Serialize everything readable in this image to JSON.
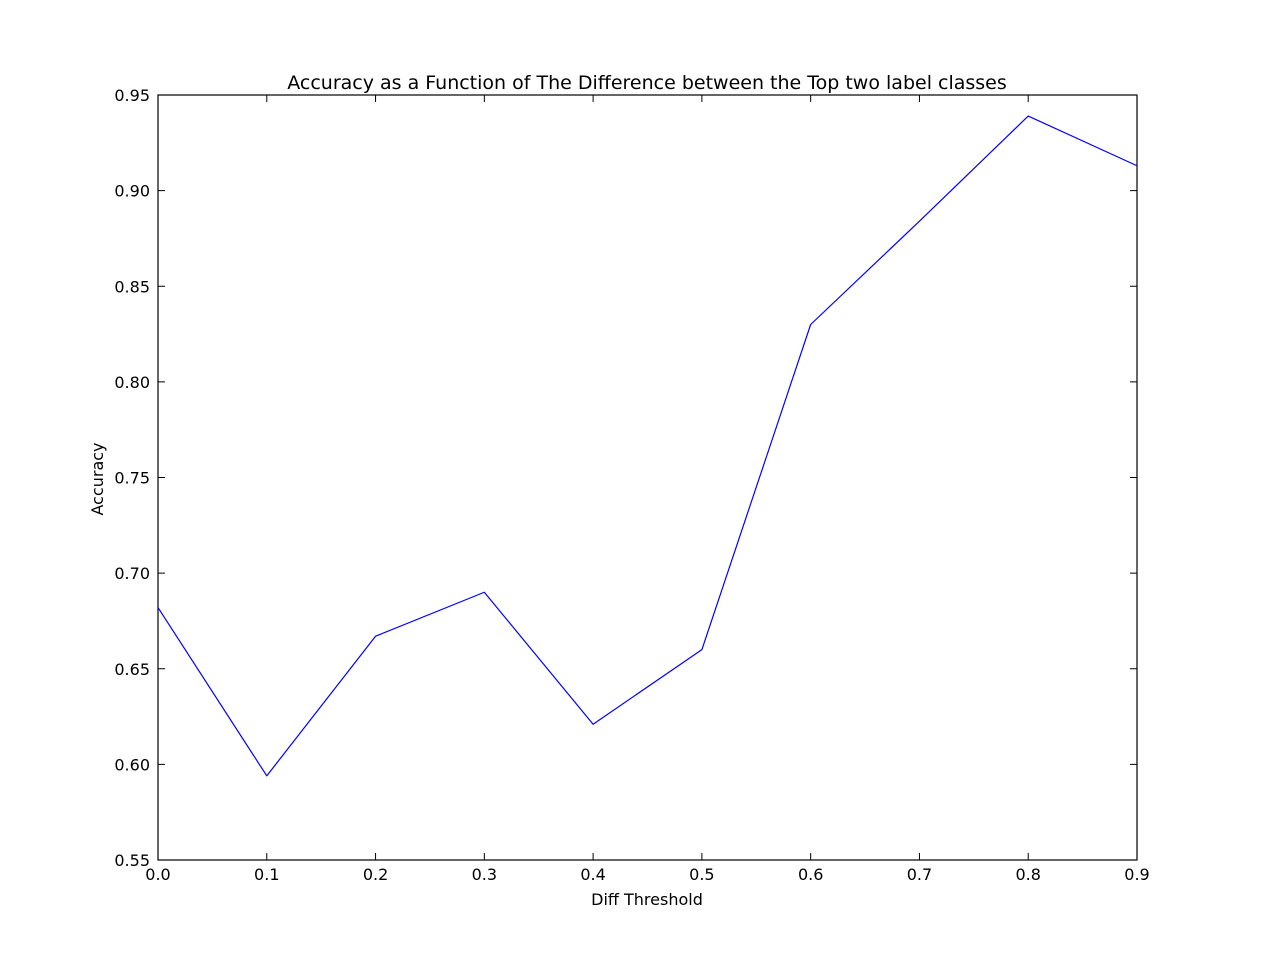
{
  "chart_data": {
    "type": "line",
    "title": "Accuracy as a Function of The Difference between the Top two label classes",
    "xlabel": "Diff Threshold",
    "ylabel": "Accuracy",
    "xlim": [
      0.0,
      0.9
    ],
    "ylim": [
      0.55,
      0.95
    ],
    "xticks": [
      "0.0",
      "0.1",
      "0.2",
      "0.3",
      "0.4",
      "0.5",
      "0.6",
      "0.7",
      "0.8",
      "0.9"
    ],
    "yticks": [
      "0.55",
      "0.60",
      "0.65",
      "0.70",
      "0.75",
      "0.80",
      "0.85",
      "0.90",
      "0.95"
    ],
    "grid": false,
    "series": [
      {
        "color": "#0000ff",
        "x": [
          0.0,
          0.1,
          0.2,
          0.3,
          0.4,
          0.5,
          0.6,
          0.7,
          0.8,
          0.9
        ],
        "y": [
          0.682,
          0.594,
          0.667,
          0.69,
          0.621,
          0.66,
          0.83,
          0.884,
          0.939,
          0.913
        ]
      }
    ]
  }
}
